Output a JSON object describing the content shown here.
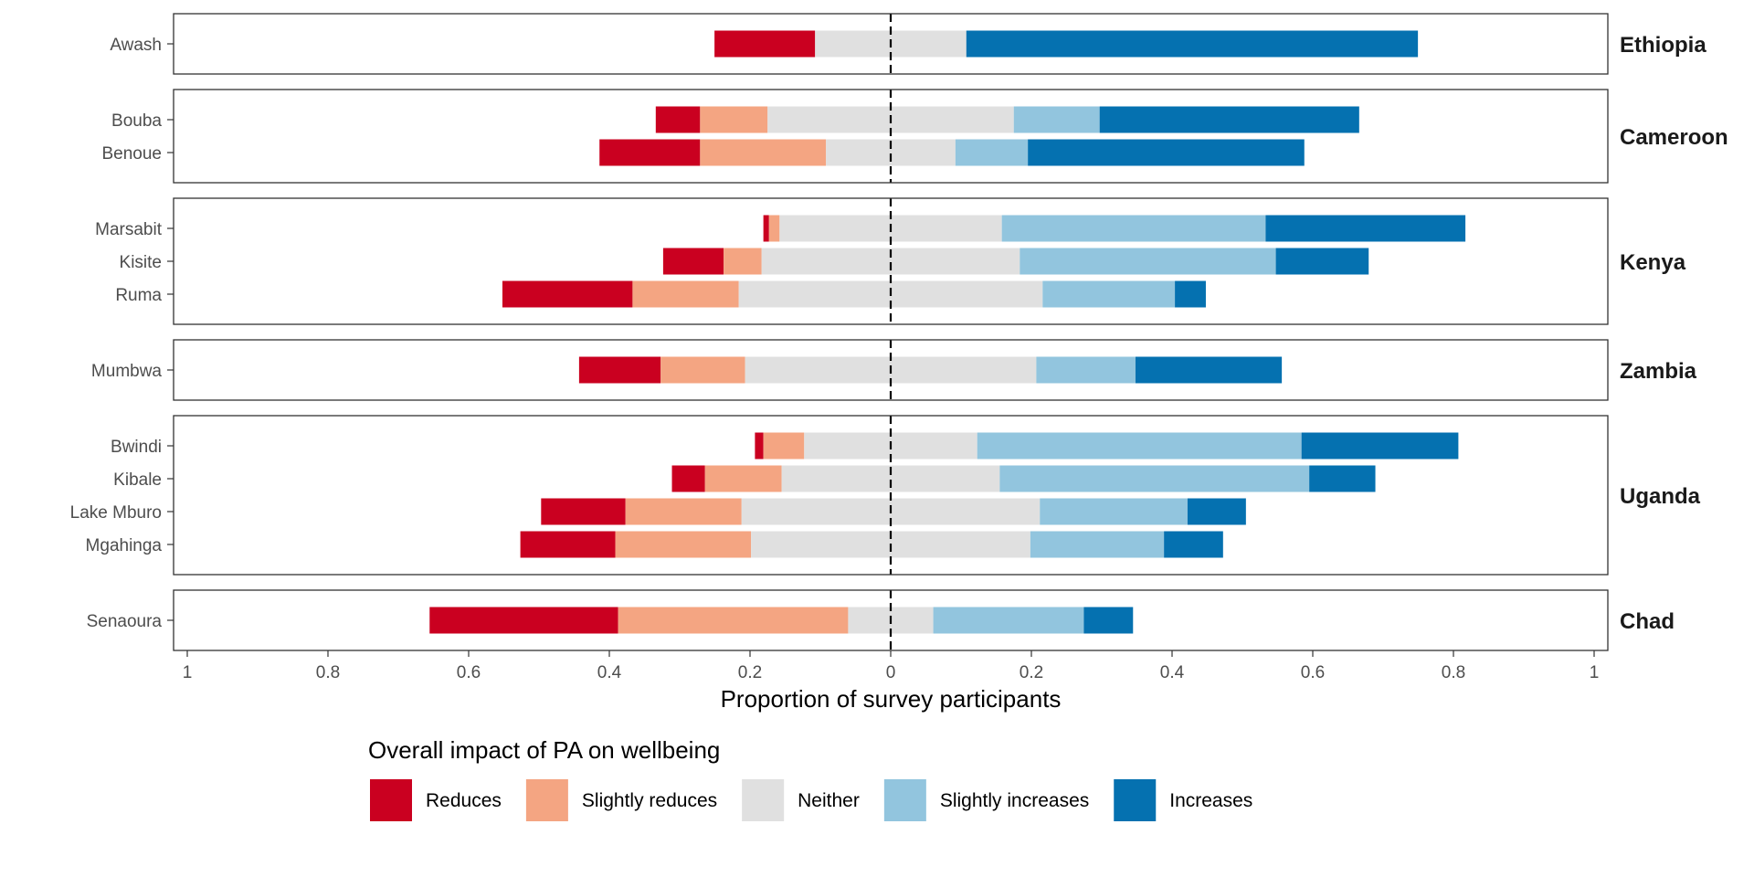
{
  "chart_data": {
    "type": "bar",
    "orientation": "horizontal",
    "stacking": "diverging",
    "xlabel": "Proportion of survey participants",
    "x_ticks": [
      "1",
      "0.8",
      "0.6",
      "0.4",
      "0.2",
      "0",
      "0.2",
      "0.4",
      "0.6",
      "0.8",
      "1"
    ],
    "xlim": [
      -1,
      1
    ],
    "grid": false,
    "legend": {
      "title": "Overall impact of PA on wellbeing",
      "position": "bottom",
      "items": [
        {
          "label": "Reduces",
          "color": "#ca0020"
        },
        {
          "label": "Slightly reduces",
          "color": "#f4a582"
        },
        {
          "label": "Neither",
          "color": "#e0e0e0"
        },
        {
          "label": "Slightly increases",
          "color": "#92c5de"
        },
        {
          "label": "Increases",
          "color": "#0571b0"
        }
      ]
    },
    "series_order": [
      "Reduces",
      "Slightly reduces",
      "Neither",
      "Slightly increases",
      "Increases"
    ],
    "facets": [
      {
        "country": "Ethiopia",
        "sites": [
          {
            "name": "Awash",
            "values": [
              0.143,
              0.0,
              0.215,
              0.0,
              0.642
            ]
          }
        ]
      },
      {
        "country": "Cameroon",
        "sites": [
          {
            "name": "Bouba",
            "values": [
              0.063,
              0.096,
              0.35,
              0.122,
              0.369
            ]
          },
          {
            "name": "Benoue",
            "values": [
              0.143,
              0.179,
              0.184,
              0.103,
              0.393
            ]
          }
        ]
      },
      {
        "country": "Kenya",
        "sites": [
          {
            "name": "Marsabit",
            "values": [
              0.008,
              0.015,
              0.316,
              0.375,
              0.284
            ]
          },
          {
            "name": "Kisite",
            "values": [
              0.086,
              0.054,
              0.367,
              0.364,
              0.132
            ]
          },
          {
            "name": "Ruma",
            "values": [
              0.185,
              0.151,
              0.432,
              0.188,
              0.044
            ]
          }
        ]
      },
      {
        "country": "Zambia",
        "sites": [
          {
            "name": "Mumbwa",
            "values": [
              0.116,
              0.12,
              0.414,
              0.141,
              0.208
            ]
          }
        ]
      },
      {
        "country": "Uganda",
        "sites": [
          {
            "name": "Bwindi",
            "values": [
              0.012,
              0.058,
              0.246,
              0.461,
              0.223
            ]
          },
          {
            "name": "Kibale",
            "values": [
              0.047,
              0.109,
              0.31,
              0.44,
              0.094
            ]
          },
          {
            "name": "Lake Mburo",
            "values": [
              0.12,
              0.165,
              0.424,
              0.21,
              0.083
            ]
          },
          {
            "name": "Mgahinga",
            "values": [
              0.135,
              0.193,
              0.397,
              0.19,
              0.084
            ]
          }
        ]
      },
      {
        "country": "Chad",
        "sites": [
          {
            "name": "Senaoura",
            "values": [
              0.268,
              0.327,
              0.121,
              0.214,
              0.07
            ]
          }
        ]
      }
    ]
  }
}
